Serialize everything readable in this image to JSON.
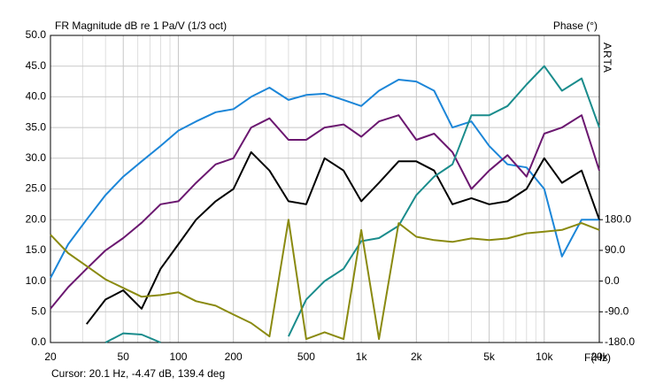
{
  "chart_data": {
    "type": "line",
    "title": "FR Magnitude dB re 1 Pa/V (1/3 oct)",
    "y2_title": "Phase (°)",
    "brand": "ARTA",
    "x_label": "F(Hz)",
    "cursor": "Cursor: 20.1 Hz, -4.47 dB, 139.4 deg",
    "log_x": true,
    "grid": true,
    "x": [
      20,
      25,
      31.5,
      40,
      50,
      63,
      80,
      100,
      125,
      160,
      200,
      250,
      315,
      400,
      500,
      630,
      800,
      1000,
      1250,
      1600,
      2000,
      2500,
      3150,
      4000,
      5000,
      6300,
      8000,
      10000,
      12500,
      16000,
      20000
    ],
    "xlim": [
      20,
      20000
    ],
    "xticks": [
      20,
      50,
      100,
      200,
      500,
      {
        "value": 1000,
        "label": "1k"
      },
      {
        "value": 2000,
        "label": "2k"
      },
      {
        "value": 5000,
        "label": "5k"
      },
      {
        "value": 10000,
        "label": "10k"
      },
      {
        "value": 20000,
        "label": "20k"
      }
    ],
    "xminor": [
      30,
      40,
      60,
      70,
      80,
      90,
      300,
      400,
      600,
      700,
      800,
      900,
      3000,
      4000,
      6000,
      7000,
      8000,
      9000
    ],
    "ylim": [
      0,
      50
    ],
    "yticks": [
      {
        "value": 0,
        "label": "0.0"
      },
      {
        "value": 5,
        "label": "5.0"
      },
      {
        "value": 10,
        "label": "10.0"
      },
      {
        "value": 15,
        "label": "15.0"
      },
      {
        "value": 20,
        "label": "20.0"
      },
      {
        "value": 25,
        "label": "25.0"
      },
      {
        "value": 30,
        "label": "30.0"
      },
      {
        "value": 35,
        "label": "35.0"
      },
      {
        "value": 40,
        "label": "40.0"
      },
      {
        "value": 45,
        "label": "45.0"
      },
      {
        "value": 50,
        "label": "50.0"
      }
    ],
    "y2lim": [
      -180,
      720
    ],
    "y2ticks": [
      {
        "value": -180,
        "label": "-180.0"
      },
      {
        "value": -90,
        "label": "-90.0"
      },
      {
        "value": 0,
        "label": "0.0"
      },
      {
        "value": 90,
        "label": "90.0"
      },
      {
        "value": 180,
        "label": "180.0"
      }
    ],
    "series": [
      {
        "color": "#1c86d8",
        "values": [
          10.5,
          16,
          20,
          24,
          27,
          29.5,
          32,
          34.5,
          36,
          37.5,
          38,
          40,
          41.5,
          39.5,
          40.3,
          40.5,
          39.5,
          38.5,
          41,
          42.8,
          42.5,
          41,
          35,
          36,
          32,
          29,
          28.5,
          25,
          14,
          20,
          20
        ]
      },
      {
        "color": "#6b1870",
        "values": [
          5.5,
          9,
          12,
          15,
          17,
          19.5,
          22.5,
          23,
          26,
          29,
          30,
          35,
          36.5,
          33,
          33,
          35,
          35.5,
          33.5,
          36,
          37,
          33,
          34,
          31,
          25,
          28,
          30.5,
          27,
          34,
          35,
          37,
          28
        ]
      },
      {
        "color": "#000000",
        "values": [
          null,
          null,
          3,
          7,
          8.5,
          5.5,
          12,
          16,
          20,
          23,
          25,
          31,
          28,
          23,
          22.5,
          30,
          28,
          23,
          26,
          29.5,
          29.5,
          28,
          22.5,
          23.5,
          22.5,
          23,
          25,
          30,
          26,
          28,
          20
        ]
      },
      {
        "color": "#1a8c8c",
        "values": [
          null,
          null,
          null,
          0,
          1.5,
          1.3,
          0,
          null,
          null,
          null,
          null,
          null,
          null,
          1,
          7,
          10,
          12,
          16.5,
          17,
          19,
          24,
          27,
          29,
          37,
          37,
          38.5,
          42,
          45,
          41,
          43,
          35
        ]
      },
      {
        "color": "#8a8a10",
        "axis": "y2",
        "values": [
          136,
          82,
          44,
          5,
          -20,
          -46,
          -41,
          -33,
          -59,
          -72,
          -98,
          -123,
          -162,
          180,
          -170,
          -150,
          -170,
          150,
          -170,
          170,
          130,
          120,
          115,
          125,
          120,
          125,
          140,
          145,
          150,
          170,
          150
        ]
      }
    ]
  }
}
